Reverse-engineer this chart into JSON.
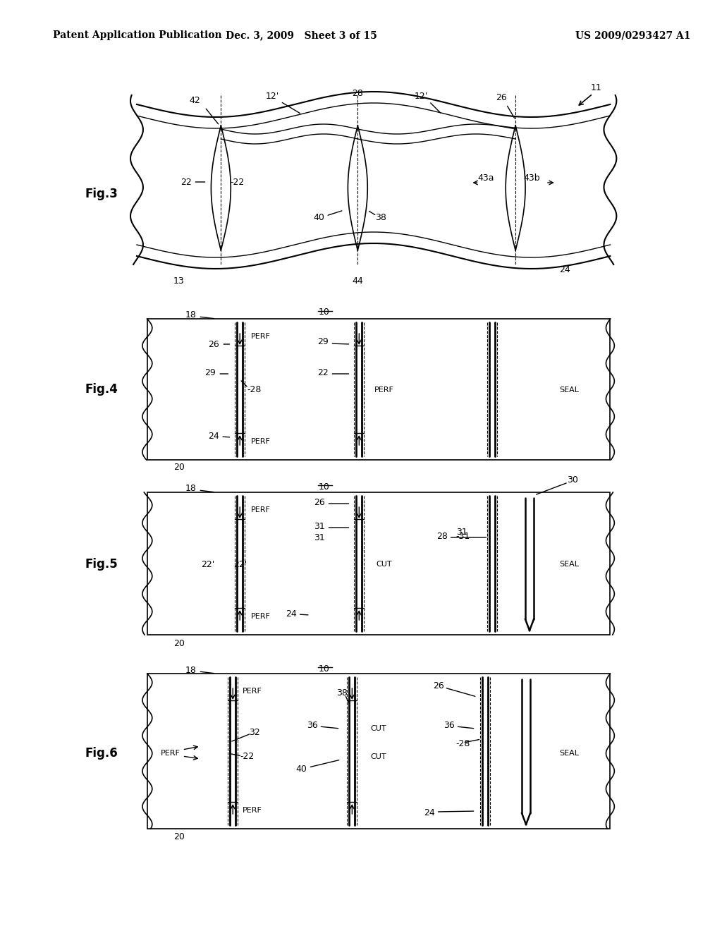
{
  "bg_color": "#ffffff",
  "header_left": "Patent Application Publication",
  "header_mid": "Dec. 3, 2009   Sheet 3 of 15",
  "header_right": "US 2009/0293427 A1"
}
